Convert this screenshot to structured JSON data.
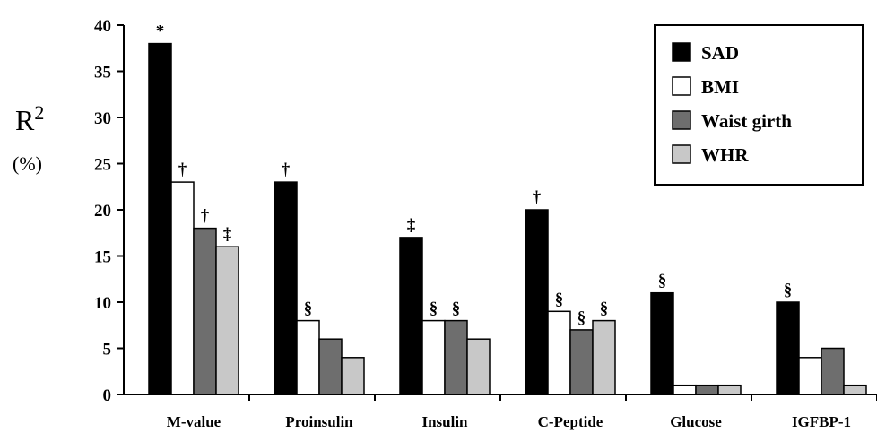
{
  "chart_data": {
    "type": "bar",
    "title": "",
    "xlabel": "",
    "ylabel": "R2",
    "ylabel_superscript": "2",
    "ylabel_base": "R",
    "ylabel_unit": "(%)",
    "ylim": [
      0,
      40
    ],
    "yticks": [
      0,
      5,
      10,
      15,
      20,
      25,
      30,
      35,
      40
    ],
    "grid": false,
    "legend_position": "top-right",
    "categories": [
      "M-value",
      "Proinsulin",
      "Insulin",
      "C-Peptide",
      "Glucose",
      "IGFBP-1"
    ],
    "series": [
      {
        "name": "SAD",
        "color": "#000000",
        "values": [
          38,
          23,
          17,
          20,
          11,
          10
        ]
      },
      {
        "name": "BMI",
        "color": "#ffffff",
        "values": [
          23,
          8,
          8,
          9,
          1,
          4
        ]
      },
      {
        "name": "Waist girth",
        "color": "#6e6e6e",
        "values": [
          18,
          6,
          8,
          7,
          1,
          5
        ]
      },
      {
        "name": "WHR",
        "color": "#c8c8c8",
        "values": [
          16,
          4,
          6,
          8,
          1,
          1
        ]
      }
    ],
    "annotations": [
      {
        "category": "M-value",
        "series": "SAD",
        "text": "*"
      },
      {
        "category": "M-value",
        "series": "BMI",
        "text": "†"
      },
      {
        "category": "M-value",
        "series": "Waist girth",
        "text": "†"
      },
      {
        "category": "M-value",
        "series": "WHR",
        "text": "‡"
      },
      {
        "category": "Proinsulin",
        "series": "SAD",
        "text": "†"
      },
      {
        "category": "Proinsulin",
        "series": "BMI",
        "text": "§"
      },
      {
        "category": "Insulin",
        "series": "SAD",
        "text": "‡"
      },
      {
        "category": "Insulin",
        "series": "BMI",
        "text": "§"
      },
      {
        "category": "Insulin",
        "series": "Waist girth",
        "text": "§"
      },
      {
        "category": "C-Peptide",
        "series": "SAD",
        "text": "†"
      },
      {
        "category": "C-Peptide",
        "series": "BMI",
        "text": "§"
      },
      {
        "category": "C-Peptide",
        "series": "Waist girth",
        "text": "§"
      },
      {
        "category": "C-Peptide",
        "series": "WHR",
        "text": "§"
      },
      {
        "category": "Glucose",
        "series": "SAD",
        "text": "§"
      },
      {
        "category": "IGFBP-1",
        "series": "SAD",
        "text": "§"
      }
    ]
  }
}
